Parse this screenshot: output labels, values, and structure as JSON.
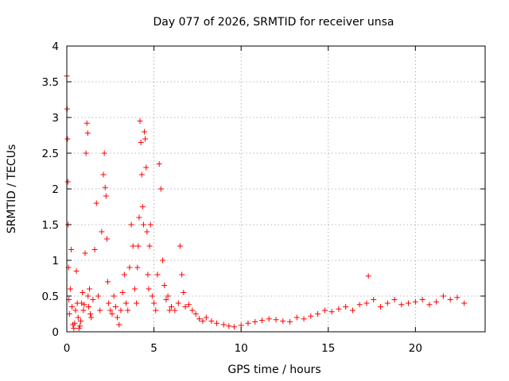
{
  "chart_data": {
    "type": "scatter",
    "title": "Day 077 of 2026, SRMTID for receiver unsa",
    "xlabel": "GPS time / hours",
    "ylabel": "SRMTID / TECUs",
    "xlim": [
      0,
      24
    ],
    "ylim": [
      0,
      4
    ],
    "xticks": [
      0,
      5,
      10,
      15,
      20
    ],
    "yticks": [
      0,
      0.5,
      1,
      1.5,
      2,
      2.5,
      3,
      3.5,
      4
    ],
    "xtick_labels": [
      "0",
      "5",
      "10",
      "15",
      "20"
    ],
    "ytick_labels": [
      "0",
      "0.5",
      "1",
      "1.5",
      "2",
      "2.5",
      "3",
      "3.5",
      "4"
    ],
    "grid": true,
    "marker": "+",
    "color": "#ff0000",
    "series": [
      {
        "name": "SRMTID",
        "x": [
          0.0,
          0.02,
          0.04,
          0.06,
          0.08,
          0.1,
          0.12,
          0.15,
          0.2,
          0.25,
          0.3,
          0.35,
          0.4,
          0.45,
          0.5,
          0.55,
          0.6,
          0.65,
          0.7,
          0.75,
          0.8,
          0.85,
          0.9,
          0.95,
          1.0,
          1.05,
          1.1,
          1.15,
          1.2,
          1.22,
          1.25,
          1.3,
          1.35,
          1.4,
          1.5,
          1.6,
          1.7,
          1.8,
          1.9,
          2.0,
          2.1,
          2.15,
          2.2,
          2.25,
          2.3,
          2.35,
          2.4,
          2.5,
          2.6,
          2.7,
          2.8,
          2.9,
          3.0,
          3.1,
          3.2,
          3.3,
          3.4,
          3.5,
          3.6,
          3.7,
          3.8,
          3.9,
          4.0,
          4.05,
          4.1,
          4.15,
          4.2,
          4.25,
          4.3,
          4.35,
          4.4,
          4.45,
          4.5,
          4.55,
          4.6,
          4.65,
          4.7,
          4.75,
          4.8,
          4.9,
          5.0,
          5.1,
          5.2,
          5.3,
          5.4,
          5.5,
          5.6,
          5.7,
          5.8,
          5.9,
          6.0,
          6.2,
          6.4,
          6.5,
          6.6,
          6.7,
          6.8,
          7.0,
          7.2,
          7.4,
          7.6,
          7.8,
          8.0,
          8.3,
          8.6,
          9.0,
          9.3,
          9.6,
          10.0,
          10.4,
          10.8,
          11.2,
          11.6,
          12.0,
          12.4,
          12.8,
          13.2,
          13.6,
          14.0,
          14.4,
          14.8,
          15.2,
          15.6,
          16.0,
          16.4,
          16.8,
          17.2,
          17.3,
          17.6,
          18.0,
          18.4,
          18.8,
          19.2,
          19.6,
          20.0,
          20.4,
          20.8,
          21.2,
          21.6,
          22.0,
          22.4,
          22.8
        ],
        "y": [
          3.58,
          3.12,
          2.7,
          2.1,
          1.5,
          0.9,
          0.45,
          0.25,
          0.6,
          1.15,
          0.35,
          0.1,
          0.05,
          0.12,
          0.3,
          0.85,
          0.4,
          0.2,
          0.05,
          0.08,
          0.15,
          0.4,
          0.55,
          0.3,
          0.38,
          1.1,
          2.5,
          2.92,
          2.78,
          0.5,
          0.35,
          0.6,
          0.25,
          0.2,
          0.45,
          1.15,
          1.8,
          0.5,
          0.3,
          1.4,
          2.2,
          2.5,
          2.02,
          1.9,
          1.3,
          0.7,
          0.4,
          0.3,
          0.25,
          0.5,
          0.35,
          0.2,
          0.1,
          0.3,
          0.55,
          0.8,
          0.4,
          0.3,
          0.9,
          1.5,
          1.2,
          0.6,
          0.4,
          0.9,
          1.2,
          1.6,
          2.95,
          2.65,
          2.2,
          1.75,
          1.5,
          2.8,
          2.7,
          2.3,
          1.4,
          0.8,
          0.6,
          1.2,
          1.5,
          0.5,
          0.4,
          0.3,
          0.8,
          2.35,
          2.0,
          1.0,
          0.65,
          0.45,
          0.5,
          0.3,
          0.35,
          0.3,
          0.4,
          1.2,
          0.8,
          0.55,
          0.35,
          0.38,
          0.3,
          0.25,
          0.18,
          0.15,
          0.2,
          0.15,
          0.12,
          0.1,
          0.08,
          0.07,
          0.09,
          0.12,
          0.14,
          0.16,
          0.18,
          0.17,
          0.15,
          0.14,
          0.2,
          0.18,
          0.22,
          0.25,
          0.3,
          0.28,
          0.32,
          0.35,
          0.3,
          0.38,
          0.4,
          0.78,
          0.45,
          0.35,
          0.4,
          0.45,
          0.38,
          0.4,
          0.42,
          0.45,
          0.38,
          0.42,
          0.5,
          0.45,
          0.48,
          0.4
        ]
      }
    ]
  }
}
